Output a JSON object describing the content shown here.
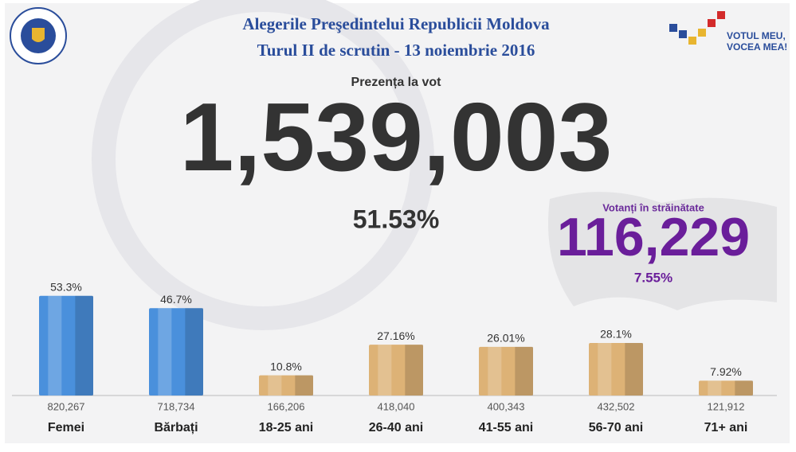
{
  "header": {
    "title": "Alegerile Preşedintelui Republicii Moldova",
    "subtitle": "Turul II de scrutin - 13 noiembrie 2016",
    "slogan_line1": "VOTUL MEU,",
    "slogan_line2": "VOCEA MEA!"
  },
  "turnout": {
    "label": "Prezența la vot",
    "value": "1,539,003",
    "percent": "51.53%"
  },
  "abroad": {
    "label": "Votanți în străinătate",
    "value": "116,229",
    "percent": "7.55%"
  },
  "chart_data": {
    "type": "bar",
    "categories": [
      "Femei",
      "Bărbați",
      "18-25 ani",
      "26-40 ani",
      "41-55 ani",
      "56-70 ani",
      "71+ ani"
    ],
    "values": [
      53.3,
      46.7,
      10.8,
      27.16,
      26.01,
      28.1,
      7.92
    ],
    "value_labels": [
      "53.3%",
      "46.7%",
      "10.8%",
      "27.16%",
      "26.01%",
      "28.1%",
      "7.92%"
    ],
    "counts": [
      "820,267",
      "718,734",
      "166,206",
      "418,040",
      "400,343",
      "432,502",
      "121,912"
    ],
    "colors": [
      "#4a90dc",
      "#4a90dc",
      "#ddb276",
      "#ddb276",
      "#ddb276",
      "#ddb276",
      "#ddb276"
    ]
  }
}
